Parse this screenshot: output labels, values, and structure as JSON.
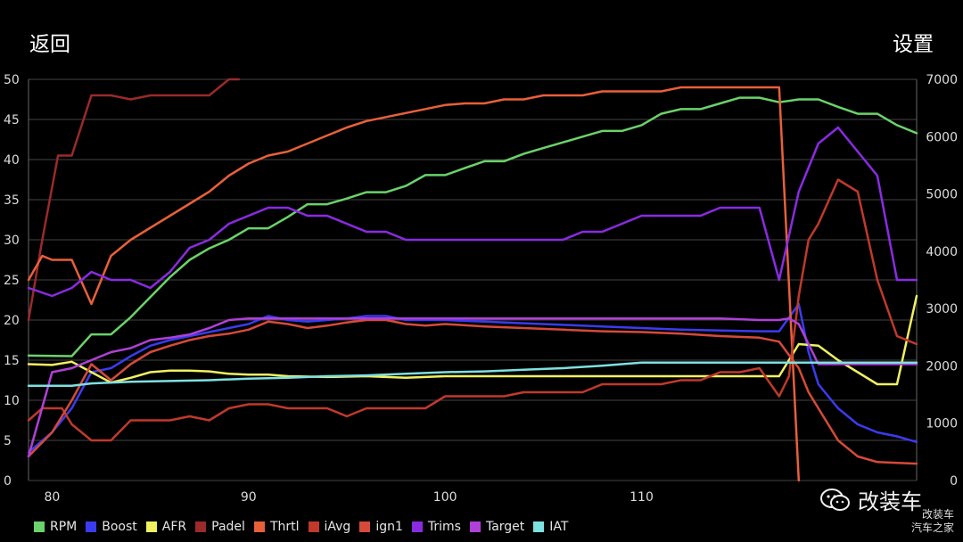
{
  "header": {
    "back_label": "返回",
    "settings_label": "设置"
  },
  "watermark": {
    "wechat_name": "改装车",
    "site_line1": "改装车",
    "site_line2": "汽车之家"
  },
  "chart_data": {
    "type": "line",
    "x_ticks": [
      80,
      90,
      100,
      110
    ],
    "xlim": [
      78.8,
      124
    ],
    "y_left": {
      "ylim": [
        0,
        50
      ],
      "ticks": [
        0,
        5,
        10,
        15,
        20,
        25,
        30,
        35,
        40,
        45,
        50
      ]
    },
    "y_right": {
      "ylim": [
        0,
        7000
      ],
      "ticks": [
        0,
        1000,
        2000,
        3000,
        4000,
        5000,
        6000,
        7000
      ]
    },
    "grid": true,
    "legend_position": "bottom",
    "series": [
      {
        "name": "RPM",
        "color": "#6ad36a",
        "axis": "right",
        "x": [
          78.8,
          81,
          82,
          83,
          84,
          85,
          86,
          87,
          88,
          89,
          90,
          91,
          92,
          93,
          94,
          95,
          96,
          97,
          98,
          99,
          100,
          101,
          102,
          103,
          104,
          105,
          106,
          107,
          108,
          109,
          110,
          111,
          112,
          113,
          114,
          115,
          116,
          117,
          118,
          119,
          120,
          121,
          122,
          123,
          124
        ],
        "y": [
          2180,
          2170,
          2550,
          2550,
          2850,
          3200,
          3550,
          3850,
          4050,
          4200,
          4400,
          4400,
          4600,
          4820,
          4820,
          4920,
          5030,
          5030,
          5140,
          5330,
          5330,
          5450,
          5570,
          5570,
          5700,
          5800,
          5900,
          6000,
          6100,
          6100,
          6200,
          6400,
          6480,
          6480,
          6580,
          6680,
          6680,
          6600,
          6650,
          6650,
          6520,
          6400,
          6400,
          6200,
          6060
        ]
      },
      {
        "name": "Boost",
        "color": "#3b3bf0",
        "axis": "left",
        "x": [
          78.8,
          80,
          81,
          82,
          83,
          84,
          85,
          86,
          87,
          88,
          89,
          90,
          91,
          92,
          93,
          94,
          95,
          96,
          97,
          98,
          100,
          102,
          104,
          106,
          108,
          110,
          112,
          114,
          116,
          117,
          118,
          118.5,
          119,
          120,
          121,
          122,
          123,
          124
        ],
        "y": [
          3.5,
          6,
          9,
          13.5,
          14,
          15.5,
          16.8,
          17.5,
          18,
          18.5,
          19,
          19.5,
          20.5,
          20,
          19.8,
          20,
          20.2,
          20.5,
          20.5,
          20,
          20,
          19.8,
          19.6,
          19.4,
          19.2,
          19,
          18.8,
          18.7,
          18.6,
          18.6,
          22,
          16,
          12,
          9,
          7,
          6,
          5.5,
          4.8
        ]
      },
      {
        "name": "AFR",
        "color": "#f0f060",
        "axis": "left",
        "x": [
          78.8,
          80,
          81,
          82,
          83,
          84,
          85,
          86,
          87,
          88,
          89,
          90,
          91,
          92,
          94,
          96,
          98,
          100,
          102,
          104,
          106,
          108,
          110,
          112,
          114,
          116,
          117,
          118,
          119,
          120,
          121,
          122,
          123,
          124
        ],
        "y": [
          14.5,
          14.4,
          14.8,
          13.5,
          12.2,
          12.8,
          13.5,
          13.7,
          13.7,
          13.6,
          13.3,
          13.2,
          13.2,
          13,
          12.9,
          13,
          12.8,
          13,
          13,
          13,
          13,
          13,
          13,
          13,
          13,
          13,
          13,
          17,
          16.8,
          15,
          13.5,
          12,
          12,
          23
        ]
      },
      {
        "name": "Padel",
        "color": "#9b2a2a",
        "axis": "left",
        "x": [
          78.8,
          79.5,
          80.3,
          81,
          82,
          83,
          84,
          85,
          86,
          87,
          88,
          89,
          89.5
        ],
        "y": [
          20,
          30,
          40.5,
          40.5,
          48,
          48,
          47.5,
          48,
          48,
          48,
          48,
          50,
          50
        ]
      },
      {
        "name": "Thrtl",
        "color": "#e8603a",
        "axis": "left",
        "x": [
          78.8,
          79.5,
          80,
          81,
          82,
          83,
          84,
          85,
          86,
          87,
          88,
          89,
          90,
          91,
          92,
          93,
          94,
          95,
          96,
          97,
          98,
          99,
          100,
          101,
          102,
          103,
          104,
          105,
          106,
          107,
          108,
          109,
          110,
          111,
          112,
          113,
          114,
          115,
          116,
          117,
          118
        ],
        "y": [
          25,
          28,
          27.5,
          27.5,
          22,
          28,
          30,
          31.5,
          33,
          34.5,
          36,
          38,
          39.5,
          40.5,
          41,
          42,
          43,
          44,
          44.8,
          45.3,
          45.8,
          46.3,
          46.8,
          47,
          47,
          47.5,
          47.5,
          48,
          48,
          48,
          48.5,
          48.5,
          48.5,
          48.5,
          49,
          49,
          49,
          49,
          49,
          49,
          0
        ]
      },
      {
        "name": "iAvg",
        "color": "#c0392b",
        "axis": "left",
        "x": [
          78.8,
          79.5,
          80.5,
          81,
          82,
          83,
          84,
          85,
          86,
          87,
          88,
          89,
          90,
          91,
          92,
          93,
          94,
          95,
          96,
          97,
          98,
          99,
          100,
          101,
          102,
          103,
          104,
          105,
          106,
          107,
          108,
          109,
          110,
          111,
          112,
          113,
          114,
          115,
          116,
          117,
          117.5,
          118,
          118.5,
          119,
          120,
          121,
          122,
          123,
          124
        ],
        "y": [
          7.5,
          9,
          9,
          7,
          5,
          5,
          7.5,
          7.5,
          7.5,
          8,
          7.5,
          9,
          9.5,
          9.5,
          9,
          9,
          9,
          8,
          9,
          9,
          9,
          9,
          10.5,
          10.5,
          10.5,
          10.5,
          11,
          11,
          11,
          11,
          12,
          12,
          12,
          12,
          12.5,
          12.5,
          13.5,
          13.5,
          14,
          10.5,
          13,
          23,
          30,
          32,
          37.5,
          36,
          25,
          18,
          17
        ]
      },
      {
        "name": "ign1",
        "color": "#d64a3a",
        "axis": "left",
        "x": [
          78.8,
          80,
          81,
          82,
          83,
          84,
          85,
          86,
          87,
          88,
          89,
          90,
          91,
          92,
          93,
          94,
          95,
          96,
          97,
          98,
          99,
          100,
          102,
          104,
          106,
          108,
          110,
          112,
          114,
          116,
          117,
          118,
          118.5,
          119,
          120,
          121,
          122,
          123,
          124
        ],
        "y": [
          3,
          6,
          10,
          14.5,
          12.5,
          14.5,
          16,
          16.8,
          17.5,
          18,
          18.3,
          18.8,
          19.8,
          19.5,
          19,
          19.3,
          19.7,
          20,
          20,
          19.5,
          19.3,
          19.5,
          19.2,
          19,
          18.8,
          18.6,
          18.5,
          18.3,
          18,
          17.8,
          17.3,
          14,
          11,
          9,
          5,
          3,
          2.3,
          2.2,
          2.1
        ]
      },
      {
        "name": "Trims",
        "color": "#8a2be2",
        "axis": "left",
        "x": [
          78.8,
          80,
          81,
          82,
          83,
          84,
          85,
          86,
          87,
          88,
          89,
          90,
          91,
          92,
          93,
          94,
          95,
          96,
          97,
          98,
          99,
          100,
          102,
          104,
          106,
          107,
          108,
          109,
          110,
          111,
          112,
          113,
          114,
          115,
          116,
          117,
          118,
          119,
          120,
          121,
          122,
          123,
          124
        ],
        "y": [
          24,
          23,
          24,
          26,
          25,
          25,
          24,
          26,
          29,
          30,
          32,
          33,
          34,
          34,
          33,
          33,
          32,
          31,
          31,
          30,
          30,
          30,
          30,
          30,
          30,
          31,
          31,
          32,
          33,
          33,
          33,
          33,
          34,
          34,
          34,
          25,
          36,
          42,
          44,
          41,
          38,
          25,
          25
        ]
      },
      {
        "name": "Target",
        "color": "#b040d8",
        "axis": "left",
        "x": [
          78.8,
          80,
          81,
          82,
          83,
          84,
          85,
          86,
          87,
          88,
          89,
          90,
          91,
          92,
          94,
          96,
          98,
          100,
          102,
          104,
          106,
          108,
          110,
          112,
          114,
          116,
          117,
          117.5,
          118,
          118.5,
          119,
          120,
          121,
          122,
          123,
          124
        ],
        "y": [
          3,
          13.5,
          14,
          15,
          16,
          16.5,
          17.5,
          17.8,
          18.2,
          19,
          20,
          20.2,
          20.2,
          20.2,
          20.2,
          20.2,
          20.2,
          20.2,
          20.2,
          20.2,
          20.2,
          20.2,
          20.2,
          20.2,
          20.2,
          20,
          20,
          20.2,
          19.5,
          17,
          14.5,
          14.5,
          14.5,
          14.5,
          14.5,
          14.5
        ]
      },
      {
        "name": "IAT",
        "color": "#7fe0e0",
        "axis": "left",
        "x": [
          78.8,
          81,
          82,
          84,
          86,
          88,
          90,
          92,
          94,
          96,
          98,
          100,
          102,
          104,
          106,
          108,
          110,
          112,
          114,
          116,
          118,
          120,
          122,
          124
        ],
        "y": [
          11.8,
          11.8,
          12.1,
          12.3,
          12.4,
          12.5,
          12.7,
          12.8,
          13,
          13.1,
          13.3,
          13.5,
          13.6,
          13.8,
          14,
          14.3,
          14.7,
          14.7,
          14.7,
          14.7,
          14.7,
          14.7,
          14.7,
          14.7
        ]
      }
    ]
  }
}
